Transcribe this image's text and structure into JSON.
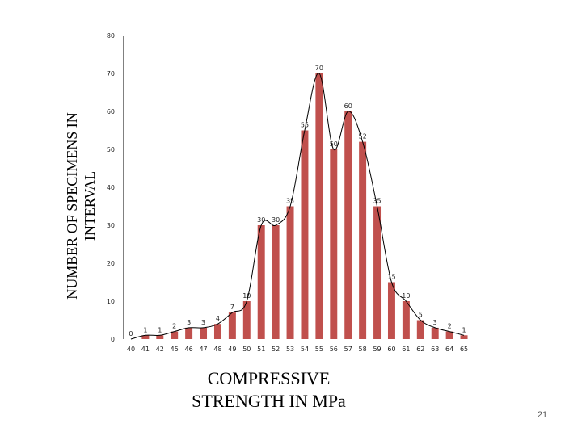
{
  "chart_data": {
    "type": "bar",
    "title": "",
    "xlabel_lines": [
      "COMPRESSIVE",
      "STRENGTH IN MPa"
    ],
    "ylabel_lines": [
      "NUMBER OF SPECIMENS IN",
      "INTERVAL"
    ],
    "categories": [
      "40",
      "41",
      "42",
      "45",
      "46",
      "47",
      "48",
      "49",
      "50",
      "51",
      "52",
      "53",
      "54",
      "55",
      "56",
      "57",
      "58",
      "59",
      "60",
      "61",
      "62",
      "63",
      "64",
      "65"
    ],
    "values": [
      0,
      1,
      1,
      2,
      3,
      3,
      4,
      7,
      10,
      30,
      30,
      35,
      55,
      70,
      50,
      60,
      52,
      35,
      15,
      10,
      5,
      3,
      2,
      1
    ],
    "data_labels": [
      "0",
      "1",
      "1",
      "2",
      "3",
      "3",
      "4",
      "7",
      "10",
      "30",
      "30",
      "35",
      "55",
      "70",
      "50",
      "60",
      "52",
      "35",
      "15",
      "10",
      "5",
      "3",
      "2",
      "1"
    ],
    "ylim": [
      0,
      80
    ],
    "yticks": [
      0,
      10,
      20,
      30,
      40,
      50,
      60,
      70,
      80
    ],
    "bar_color": "#c0504d",
    "curve_color": "#000000",
    "overlay": "smooth distribution curve",
    "grid": false,
    "legend": "none"
  },
  "page_number": "21"
}
